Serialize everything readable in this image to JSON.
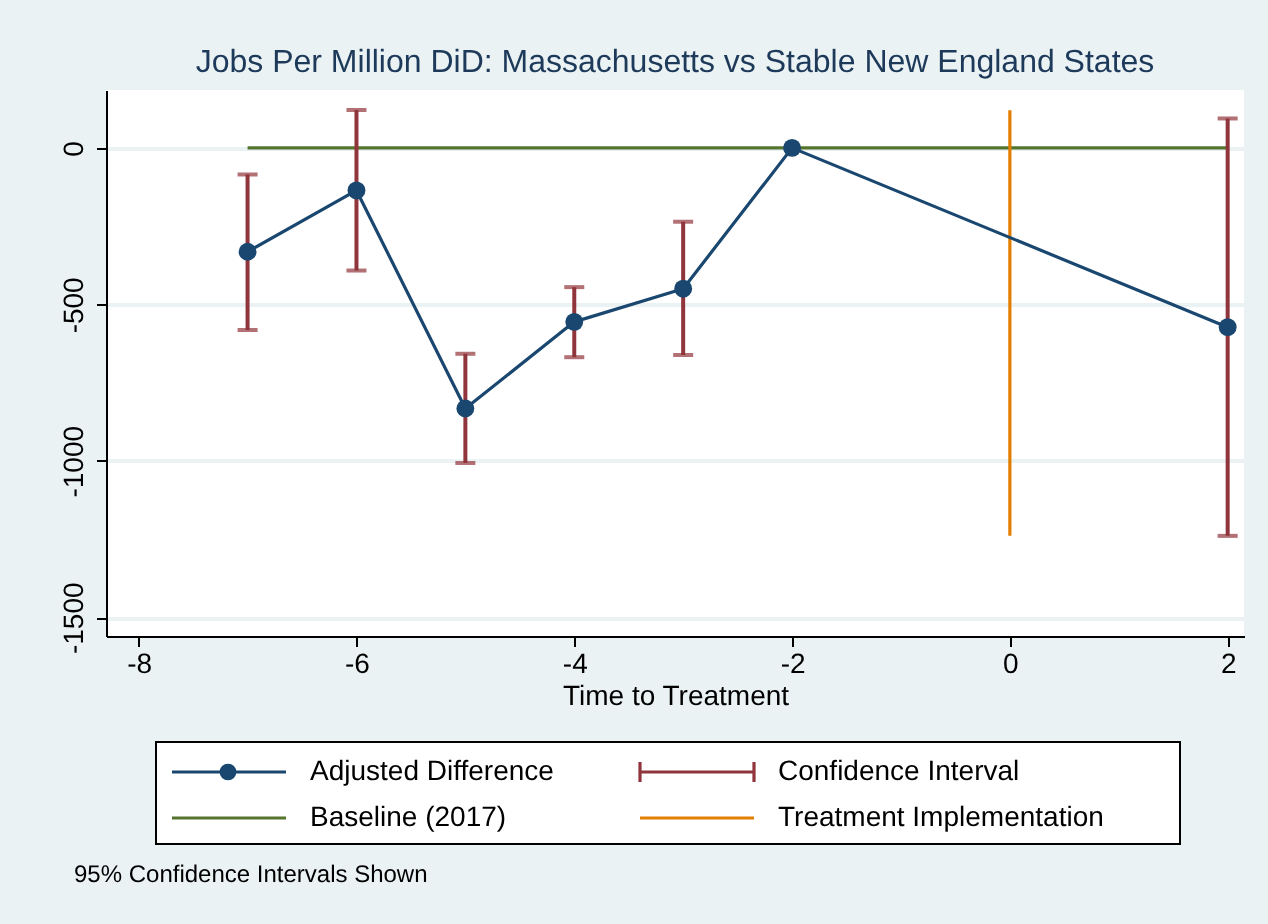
{
  "chart_data": {
    "type": "line",
    "title": "Jobs Per Million DiD: Massachusetts vs Stable New England States",
    "xlabel": "Time to Treatment",
    "xlim": [
      -8.3,
      2.15
    ],
    "xticks": [
      -8,
      -6,
      -4,
      -2,
      0,
      2
    ],
    "ylim": [
      -1560,
      185
    ],
    "yticks": [
      -1500,
      -1000,
      -500,
      0
    ],
    "grid": "y",
    "legend": "bottom",
    "series": [
      {
        "name": "Adjusted Difference",
        "color": "#1a476f",
        "marker": "circle",
        "x": [
          -7,
          -6,
          -5,
          -4,
          -3,
          -2,
          2
        ],
        "values": [
          -332,
          -136,
          -833,
          -556,
          -450,
          0,
          -573
        ],
        "errors": [
          [
            -582,
            -85
          ],
          [
            -392,
            121
          ],
          [
            -1007,
            -658
          ],
          [
            -669,
            -445
          ],
          [
            -662,
            -236
          ],
          null,
          [
            -1240,
            94
          ]
        ]
      },
      {
        "name": "Baseline (2017)",
        "color": "#55752f",
        "x": [
          -7,
          2
        ],
        "values": [
          0,
          0
        ]
      },
      {
        "name": "Treatment Implementation",
        "color": "#e37e00",
        "x": [
          0,
          0
        ],
        "values": [
          120,
          -1240
        ]
      }
    ],
    "annotations": [
      "Confidence Interval",
      "95% Confidence Intervals Shown"
    ]
  }
}
